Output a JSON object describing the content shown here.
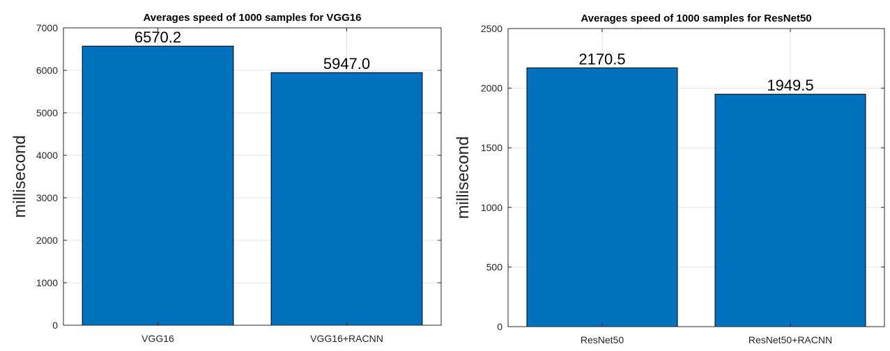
{
  "chart_data": [
    {
      "type": "bar",
      "title": "Averages speed of 1000 samples for VGG16",
      "ylabel": "millisecond",
      "xlabel": "",
      "categories": [
        "VGG16",
        "VGG16+RACNN"
      ],
      "values": [
        6570.2,
        5947.0
      ],
      "data_labels": [
        "6570.2",
        "5947.0"
      ],
      "ylim": [
        0,
        7000
      ],
      "yticks": [
        0,
        1000,
        2000,
        3000,
        4000,
        5000,
        6000,
        7000
      ],
      "ytick_labels": [
        "0",
        "1000",
        "2000",
        "3000",
        "4000",
        "5000",
        "6000",
        "7000"
      ],
      "grid": true,
      "bar_color": "#0072BD"
    },
    {
      "type": "bar",
      "title": "Averages speed of 1000 samples for ResNet50",
      "ylabel": "millisecond",
      "xlabel": "",
      "categories": [
        "ResNet50",
        "ResNet50+RACNN"
      ],
      "values": [
        2170.5,
        1949.5
      ],
      "data_labels": [
        "2170.5",
        "1949.5"
      ],
      "ylim": [
        0,
        2500
      ],
      "yticks": [
        0,
        500,
        1000,
        1500,
        2000,
        2500
      ],
      "ytick_labels": [
        "0",
        "500",
        "1000",
        "1500",
        "2000",
        "2500"
      ],
      "grid": true,
      "bar_color": "#0072BD"
    }
  ]
}
